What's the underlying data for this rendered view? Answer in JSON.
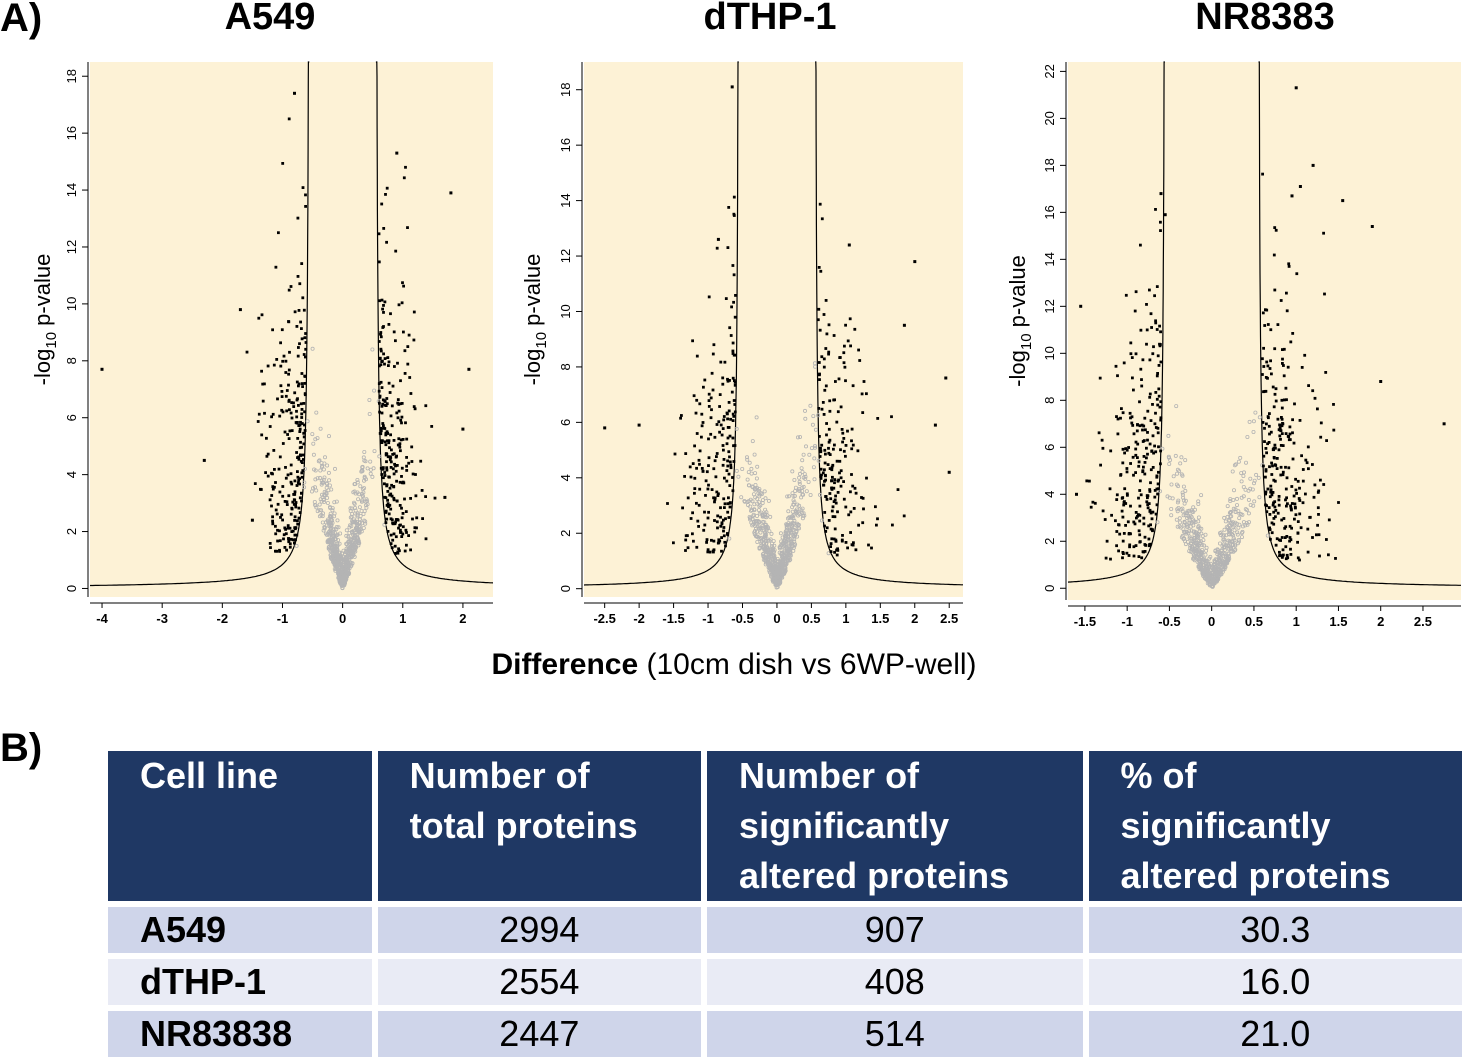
{
  "panel_a_label": "A)",
  "panel_b_label": "B)",
  "x_caption_bold": "Difference",
  "x_caption_rest": " (10cm dish vs 6WP-well)",
  "y_label_main": "-log",
  "y_label_sub": "10",
  "y_label_tail": " p-value",
  "colors": {
    "background": "#fdf2d6",
    "significant": "#000000",
    "nonsignificant": "#b4b4b4",
    "header": "#1f3864"
  },
  "chart_data": [
    {
      "type": "scatter",
      "title": "A549",
      "xlabel": "Difference",
      "ylabel": "-log10 p-value",
      "xlim": [
        -4.2,
        2.5
      ],
      "ylim": [
        -0.3,
        18.5
      ],
      "x_ticks": [
        -4,
        -3,
        -2,
        -1,
        0,
        1,
        2
      ],
      "y_ticks": [
        0,
        2,
        4,
        6,
        8,
        10,
        12,
        14,
        16,
        18
      ],
      "threshold": {
        "s0": 0.55,
        "c": 0.38
      },
      "n_significant": 907,
      "n_total": 2994,
      "outliers": [
        [
          -4.0,
          7.7
        ],
        [
          -2.3,
          4.5
        ],
        [
          -0.8,
          17.4
        ],
        [
          0.9,
          15.3
        ],
        [
          1.8,
          13.9
        ],
        [
          2.1,
          7.7
        ],
        [
          2.0,
          5.6
        ],
        [
          1.7,
          3.2
        ],
        [
          -1.7,
          9.8
        ],
        [
          -1.5,
          2.4
        ]
      ]
    },
    {
      "type": "scatter",
      "title": "dTHP-1",
      "xlabel": "Difference",
      "ylabel": "-log10 p-value",
      "xlim": [
        -2.8,
        2.7
      ],
      "ylim": [
        -0.3,
        19.0
      ],
      "x_ticks": [
        -2.5,
        -2,
        -1.5,
        -1,
        -0.5,
        0,
        0.5,
        1,
        1.5,
        2,
        2.5
      ],
      "y_ticks": [
        0,
        2,
        4,
        6,
        8,
        10,
        12,
        14,
        16,
        18
      ],
      "threshold": {
        "s0": 0.55,
        "c": 0.3
      },
      "n_significant": 408,
      "n_total": 2554,
      "outliers": [
        [
          -0.65,
          18.1
        ],
        [
          -2.5,
          5.8
        ],
        [
          -2.0,
          5.9
        ],
        [
          -0.85,
          12.6
        ],
        [
          1.05,
          12.4
        ],
        [
          2.0,
          11.8
        ],
        [
          2.45,
          7.6
        ],
        [
          1.85,
          9.5
        ],
        [
          2.5,
          4.2
        ],
        [
          2.3,
          5.9
        ]
      ]
    },
    {
      "type": "scatter",
      "title": "NR8383",
      "xlabel": "Difference",
      "ylabel": "-log10 p-value",
      "xlim": [
        -1.7,
        2.95
      ],
      "ylim": [
        -0.5,
        22.4
      ],
      "x_ticks": [
        -1.5,
        -1,
        -0.5,
        0,
        0.5,
        1,
        1.5,
        2,
        2.5
      ],
      "y_ticks": [
        0,
        2,
        4,
        6,
        8,
        10,
        12,
        14,
        16,
        18,
        20,
        22
      ],
      "threshold": {
        "s0": 0.55,
        "c": 0.3
      },
      "n_significant": 514,
      "n_total": 2447,
      "outliers": [
        [
          1.0,
          21.3
        ],
        [
          1.2,
          18.0
        ],
        [
          1.05,
          17.1
        ],
        [
          0.95,
          16.7
        ],
        [
          1.55,
          16.5
        ],
        [
          1.9,
          15.4
        ],
        [
          -0.6,
          16.8
        ],
        [
          -0.55,
          15.9
        ],
        [
          2.75,
          7.0
        ],
        [
          -1.55,
          12.0
        ],
        [
          -1.6,
          4.0
        ],
        [
          2.0,
          8.8
        ]
      ]
    }
  ],
  "table": {
    "headers": [
      [
        "Cell line"
      ],
      [
        "Number of",
        "total proteins"
      ],
      [
        "Number of",
        "significantly",
        "altered proteins"
      ],
      [
        "% of",
        "significantly",
        "altered proteins"
      ]
    ],
    "rows": [
      {
        "name": "A549",
        "total": "2994",
        "significant": "907",
        "percent": "30.3"
      },
      {
        "name": "dTHP-1",
        "total": "2554",
        "significant": "408",
        "percent": "16.0"
      },
      {
        "name": "NR83838",
        "total": "2447",
        "significant": "514",
        "percent": "21.0"
      }
    ]
  }
}
